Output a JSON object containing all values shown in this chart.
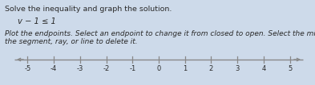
{
  "title_line1": "Solve the inequality and graph the solution.",
  "inequality": "v − 1 ≤ 1",
  "instruction_line1": "Plot the endpoints. Select an endpoint to change it from closed to open. Select the middle of",
  "instruction_line2": "the segment, ray, or line to delete it.",
  "tick_labels": [
    -5,
    -4,
    -3,
    -2,
    -1,
    0,
    1,
    2,
    3,
    4,
    5
  ],
  "bg_color": "#cddaea",
  "text_color": "#2a2a2a",
  "line_color": "#888888",
  "title_fontsize": 6.8,
  "inequality_fontsize": 7.2,
  "instruction_fontsize": 6.5,
  "tick_fontsize": 6.0
}
